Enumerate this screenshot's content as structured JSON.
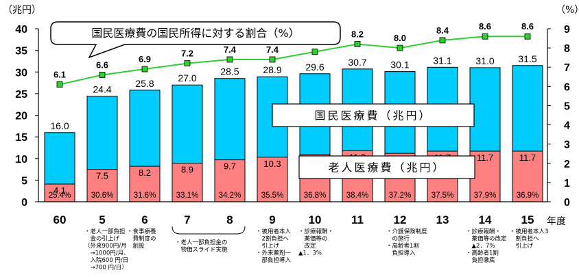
{
  "chart_data": {
    "type": "bar",
    "title": "国民医療費の国民所得に対する割合（%）",
    "left_axis_unit": "（兆円）",
    "right_axis_unit": "（%）",
    "x_axis_unit": "年度",
    "ylim": [
      0,
      40
    ],
    "yticks": [
      0,
      5,
      10,
      15,
      20,
      25,
      30,
      35,
      40
    ],
    "y2lim": [
      0,
      9
    ],
    "y2ticks": [
      0,
      1,
      2,
      3,
      4,
      5,
      6,
      7,
      8,
      9
    ],
    "grid": false,
    "categories": [
      "60",
      "5",
      "6",
      "7",
      "8",
      "9",
      "10",
      "11",
      "12",
      "13",
      "14",
      "15"
    ],
    "series": [
      {
        "name": "国民医療費（兆円）",
        "kind": "bar",
        "color": "#00CCFF",
        "values": [
          16.0,
          24.4,
          25.8,
          27.0,
          28.5,
          28.9,
          29.6,
          30.7,
          30.1,
          31.1,
          31.0,
          31.5
        ],
        "labels": [
          "16.0",
          "24.4",
          "25.8",
          "27.0",
          "28.5",
          "28.9",
          "29.6",
          "30.7",
          "30.1",
          "31.1",
          "31.0",
          "31.5"
        ]
      },
      {
        "name": "老人医療費（兆円）",
        "kind": "bar",
        "color": "#FF8080",
        "values": [
          4.1,
          7.5,
          8.2,
          8.9,
          9.7,
          10.3,
          10.9,
          11.8,
          11.2,
          11.7,
          11.7,
          11.7
        ],
        "labels": [
          "4.1",
          "7.5",
          "8.2",
          "8.9",
          "9.7",
          "10.3",
          "10.9",
          "11.8",
          "11.2",
          "11.7",
          "11.7",
          "11.7"
        ],
        "share_labels": [
          "25.4%",
          "30.6%",
          "31.6%",
          "33.1%",
          "34.2%",
          "35.5%",
          "36.8%",
          "38.4%",
          "37.2%",
          "37.5%",
          "37.9%",
          "36.9%"
        ]
      },
      {
        "name": "国民医療費の国民所得に対する割合（%）",
        "kind": "line",
        "axis": "right",
        "color": "#33CC33",
        "values": [
          6.1,
          6.6,
          6.9,
          7.2,
          7.4,
          7.4,
          7.8,
          8.2,
          8.0,
          8.4,
          8.6,
          8.6
        ],
        "labels": [
          "6.1",
          "6.6",
          "6.9",
          "7.2",
          "7.4",
          "7.4",
          "7.8",
          "8.2",
          "8.0",
          "8.4",
          "8.6",
          "8.6"
        ]
      }
    ],
    "annotations": [
      {
        "category": "5",
        "lines": [
          "・老人一部負担",
          "　金の引上げ",
          "（外来900円/月",
          "　→1000円/月、",
          "　入院600 円/日",
          "　→700 円/日）"
        ]
      },
      {
        "category": "6",
        "lines": [
          "・食事療養",
          "　費制度の",
          "　創設"
        ]
      },
      {
        "category": "7-8",
        "lines": [
          "・老人一部負担金の",
          "　物価スライド実施"
        ]
      },
      {
        "category": "9",
        "lines": [
          "・被用者本人",
          "　2割負担へ",
          "　引上げ",
          "・外来薬剤一",
          "　部負担導入"
        ]
      },
      {
        "category": "10",
        "lines": [
          "・診療報酬・",
          "　薬価等の",
          "　改定",
          "▲1．3%"
        ]
      },
      {
        "category": "12",
        "lines": [
          "・介護保険制度",
          "　の施行",
          "・高齢者1割",
          "　負担導入"
        ]
      },
      {
        "category": "14",
        "lines": [
          "・診療報酬・",
          "　薬価等の改定",
          "　▲2．7%",
          "・高齢者1割",
          "　負担徹底"
        ]
      },
      {
        "category": "15",
        "lines": [
          "・被用者本人3",
          "　割負担へ",
          "　引上げ"
        ]
      }
    ]
  }
}
